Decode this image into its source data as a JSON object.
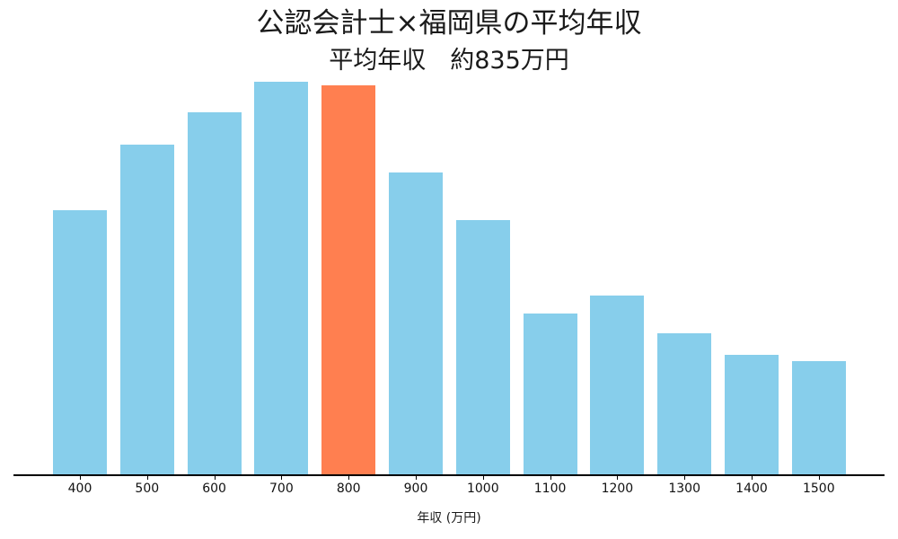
{
  "chart_data": {
    "type": "bar",
    "title": "公認会計士×福岡県の平均年収",
    "subtitle": "平均年収　約835万円",
    "xlabel": "年収 (万円)",
    "ylabel": "",
    "categories": [
      "400",
      "500",
      "600",
      "700",
      "800",
      "900",
      "1000",
      "1100",
      "1200",
      "1300",
      "1400",
      "1500"
    ],
    "values": [
      295,
      368,
      404,
      438,
      434,
      337,
      284,
      180,
      200,
      158,
      134,
      127
    ],
    "value_note": "relative bar heights (no y-axis shown)",
    "highlight_category": "800",
    "colors": {
      "default": "#87ceeb",
      "highlight": "#ff7f50"
    },
    "grid": false,
    "legend": null
  }
}
